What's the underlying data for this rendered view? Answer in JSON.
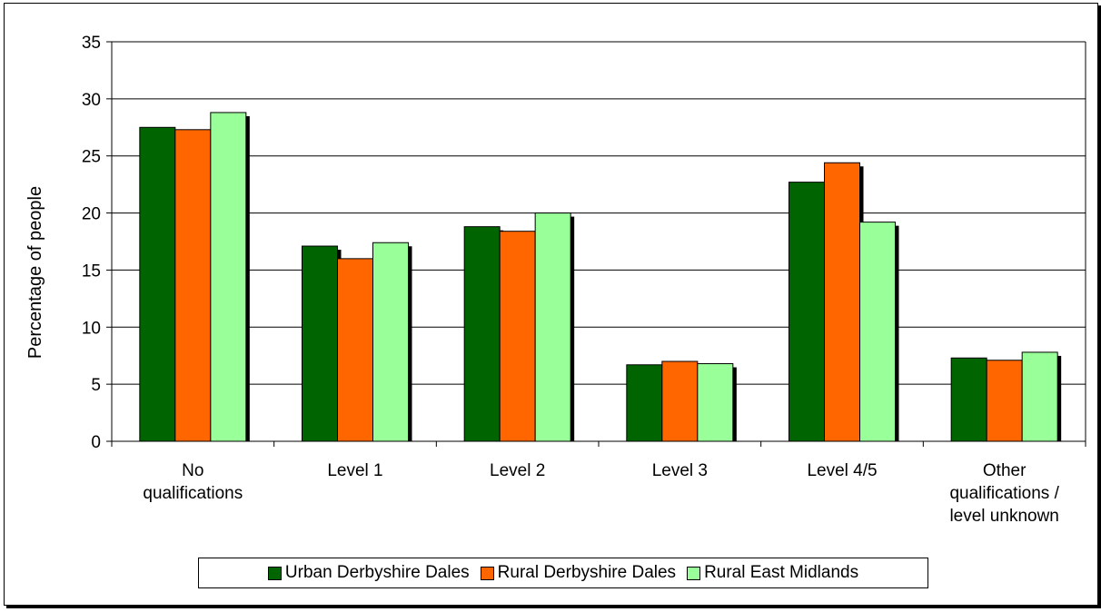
{
  "chart_data": {
    "type": "bar",
    "categories": [
      [
        "No",
        "qualifications"
      ],
      [
        "Level 1"
      ],
      [
        "Level 2"
      ],
      [
        "Level 3"
      ],
      [
        "Level 4/5"
      ],
      [
        "Other",
        "qualifications /",
        "level unknown"
      ]
    ],
    "series": [
      {
        "name": "Urban Derbyshire Dales",
        "color": "#006400",
        "values": [
          27.5,
          17.1,
          18.8,
          6.7,
          22.7,
          7.3
        ]
      },
      {
        "name": "Rural Derbyshire Dales",
        "color": "#FF6600",
        "values": [
          27.3,
          16.0,
          18.4,
          7.0,
          24.4,
          7.1
        ]
      },
      {
        "name": "Rural East Midlands",
        "color": "#99FF99",
        "values": [
          28.8,
          17.4,
          20.0,
          6.8,
          19.2,
          7.8
        ]
      }
    ],
    "title": "",
    "xlabel": "",
    "ylabel": "Percentage of people",
    "ylim": [
      0,
      35
    ],
    "yticks": [
      0,
      5,
      10,
      15,
      20,
      25,
      30,
      35
    ],
    "grid": true,
    "legend_position": "bottom"
  }
}
